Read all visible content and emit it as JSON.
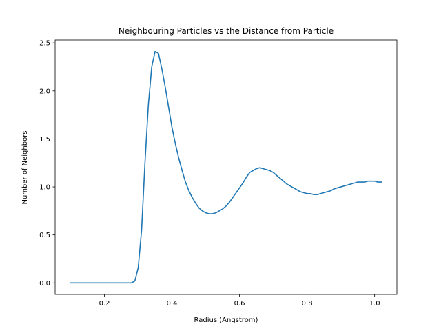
{
  "chart_data": {
    "type": "line",
    "title": "Neighbouring Particles vs the Distance from Particle",
    "xlabel": "Radius (Angstrom)",
    "ylabel": "Number of Neighbors",
    "xlim": [
      0.054,
      1.066
    ],
    "ylim": [
      -0.12,
      2.53
    ],
    "xticks": [
      0.2,
      0.4,
      0.6,
      0.8,
      1.0
    ],
    "xtick_labels": [
      "0.2",
      "0.4",
      "0.6",
      "0.8",
      "1.0"
    ],
    "yticks": [
      0.0,
      0.5,
      1.0,
      1.5,
      2.0,
      2.5
    ],
    "ytick_labels": [
      "0.0",
      "0.5",
      "1.0",
      "1.5",
      "2.0",
      "2.5"
    ],
    "grid": false,
    "legend": "none",
    "series": [
      {
        "color": "#1f77b4",
        "x": [
          0.1,
          0.12,
          0.14,
          0.16,
          0.18,
          0.2,
          0.22,
          0.24,
          0.26,
          0.27,
          0.28,
          0.29,
          0.3,
          0.31,
          0.32,
          0.33,
          0.34,
          0.35,
          0.36,
          0.37,
          0.38,
          0.39,
          0.4,
          0.41,
          0.42,
          0.43,
          0.44,
          0.45,
          0.46,
          0.47,
          0.48,
          0.49,
          0.5,
          0.51,
          0.52,
          0.53,
          0.54,
          0.55,
          0.56,
          0.57,
          0.58,
          0.59,
          0.6,
          0.61,
          0.62,
          0.63,
          0.64,
          0.65,
          0.66,
          0.67,
          0.68,
          0.69,
          0.7,
          0.71,
          0.72,
          0.73,
          0.74,
          0.75,
          0.76,
          0.77,
          0.78,
          0.79,
          0.8,
          0.81,
          0.82,
          0.83,
          0.84,
          0.85,
          0.86,
          0.87,
          0.88,
          0.89,
          0.9,
          0.91,
          0.92,
          0.93,
          0.94,
          0.95,
          0.96,
          0.97,
          0.98,
          0.99,
          1.0,
          1.01,
          1.02
        ],
        "y": [
          0.0,
          0.0,
          0.0,
          0.0,
          0.0,
          0.0,
          0.0,
          0.0,
          0.0,
          0.0,
          0.0,
          0.02,
          0.16,
          0.55,
          1.25,
          1.85,
          2.25,
          2.41,
          2.39,
          2.23,
          2.04,
          1.83,
          1.62,
          1.45,
          1.3,
          1.17,
          1.05,
          0.96,
          0.89,
          0.83,
          0.78,
          0.75,
          0.73,
          0.72,
          0.72,
          0.73,
          0.75,
          0.77,
          0.8,
          0.84,
          0.89,
          0.94,
          0.99,
          1.04,
          1.1,
          1.15,
          1.17,
          1.19,
          1.2,
          1.19,
          1.18,
          1.17,
          1.15,
          1.12,
          1.09,
          1.06,
          1.03,
          1.01,
          0.99,
          0.97,
          0.95,
          0.94,
          0.93,
          0.93,
          0.92,
          0.92,
          0.93,
          0.94,
          0.95,
          0.96,
          0.98,
          0.99,
          1.0,
          1.01,
          1.02,
          1.03,
          1.04,
          1.05,
          1.05,
          1.05,
          1.06,
          1.06,
          1.06,
          1.05,
          1.05
        ]
      }
    ]
  }
}
